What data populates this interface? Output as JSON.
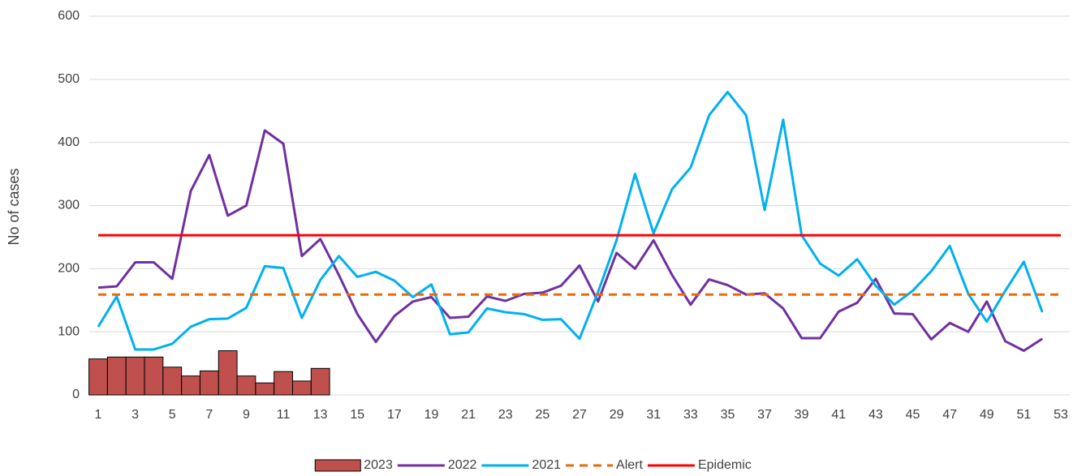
{
  "chart_data": {
    "type": "combo",
    "y_label": "No of cases",
    "categories": [
      "1",
      null,
      "3",
      null,
      "5",
      null,
      "7",
      null,
      "9",
      null,
      "11",
      null,
      "13",
      null,
      "15",
      null,
      "17",
      null,
      "19",
      null,
      "21",
      null,
      "23",
      null,
      "25",
      null,
      "27",
      null,
      "29",
      null,
      "31",
      null,
      "33",
      null,
      "35",
      null,
      "37",
      null,
      "39",
      null,
      "41",
      null,
      "43",
      null,
      "45",
      null,
      "47",
      null,
      "49",
      null,
      "51",
      null,
      "53"
    ],
    "ylim": [
      0,
      600
    ],
    "yticks": [
      0,
      100,
      200,
      300,
      400,
      500,
      600
    ],
    "grid": true,
    "legend": "bottom",
    "series": [
      {
        "name": "2023",
        "type": "bar",
        "color": "#c0504d",
        "values": [
          57,
          60,
          60,
          60,
          44,
          30,
          38,
          70,
          30,
          19,
          37,
          22,
          42,
          null,
          null,
          null,
          null,
          null,
          null,
          null,
          null,
          null,
          null,
          null,
          null,
          null,
          null,
          null,
          null,
          null,
          null,
          null,
          null,
          null,
          null,
          null,
          null,
          null,
          null,
          null,
          null,
          null,
          null,
          null,
          null,
          null,
          null,
          null,
          null,
          null,
          null,
          null,
          null
        ]
      },
      {
        "name": "2022",
        "type": "line",
        "color": "#7030a0",
        "values": [
          170,
          172,
          210,
          210,
          184,
          323,
          380,
          284,
          300,
          419,
          398,
          220,
          247,
          190,
          128,
          84,
          125,
          148,
          155,
          122,
          124,
          156,
          149,
          160,
          162,
          173,
          205,
          148,
          225,
          200,
          245,
          190,
          143,
          183,
          174,
          159,
          161,
          137,
          90,
          90,
          132,
          146,
          184,
          129,
          128,
          88,
          114,
          100,
          148,
          85,
          70,
          89,
          null
        ]
      },
      {
        "name": "2021",
        "type": "line",
        "color": "#00b0f0",
        "values": [
          108,
          156,
          72,
          72,
          81,
          108,
          120,
          121,
          138,
          204,
          201,
          122,
          182,
          220,
          187,
          195,
          181,
          155,
          175,
          96,
          99,
          137,
          131,
          128,
          119,
          120,
          89,
          163,
          245,
          350,
          256,
          326,
          360,
          443,
          480,
          443,
          293,
          436,
          253,
          208,
          189,
          215,
          173,
          143,
          165,
          196,
          236,
          160,
          116,
          165,
          211,
          131,
          null
        ]
      },
      {
        "name": "Alert",
        "type": "line",
        "dashed": true,
        "color": "#e46c0a",
        "values": [
          159,
          159,
          159,
          159,
          159,
          159,
          159,
          159,
          159,
          159,
          159,
          159,
          159,
          159,
          159,
          159,
          159,
          159,
          159,
          159,
          159,
          159,
          159,
          159,
          159,
          159,
          159,
          159,
          159,
          159,
          159,
          159,
          159,
          159,
          159,
          159,
          159,
          159,
          159,
          159,
          159,
          159,
          159,
          159,
          159,
          159,
          159,
          159,
          159,
          159,
          159,
          159,
          159
        ]
      },
      {
        "name": "Epidemic",
        "type": "line",
        "color": "#ff0000",
        "values": [
          253,
          253,
          253,
          253,
          253,
          253,
          253,
          253,
          253,
          253,
          253,
          253,
          253,
          253,
          253,
          253,
          253,
          253,
          253,
          253,
          253,
          253,
          253,
          253,
          253,
          253,
          253,
          253,
          253,
          253,
          253,
          253,
          253,
          253,
          253,
          253,
          253,
          253,
          253,
          253,
          253,
          253,
          253,
          253,
          253,
          253,
          253,
          253,
          253,
          253,
          253,
          253,
          253
        ]
      }
    ]
  }
}
